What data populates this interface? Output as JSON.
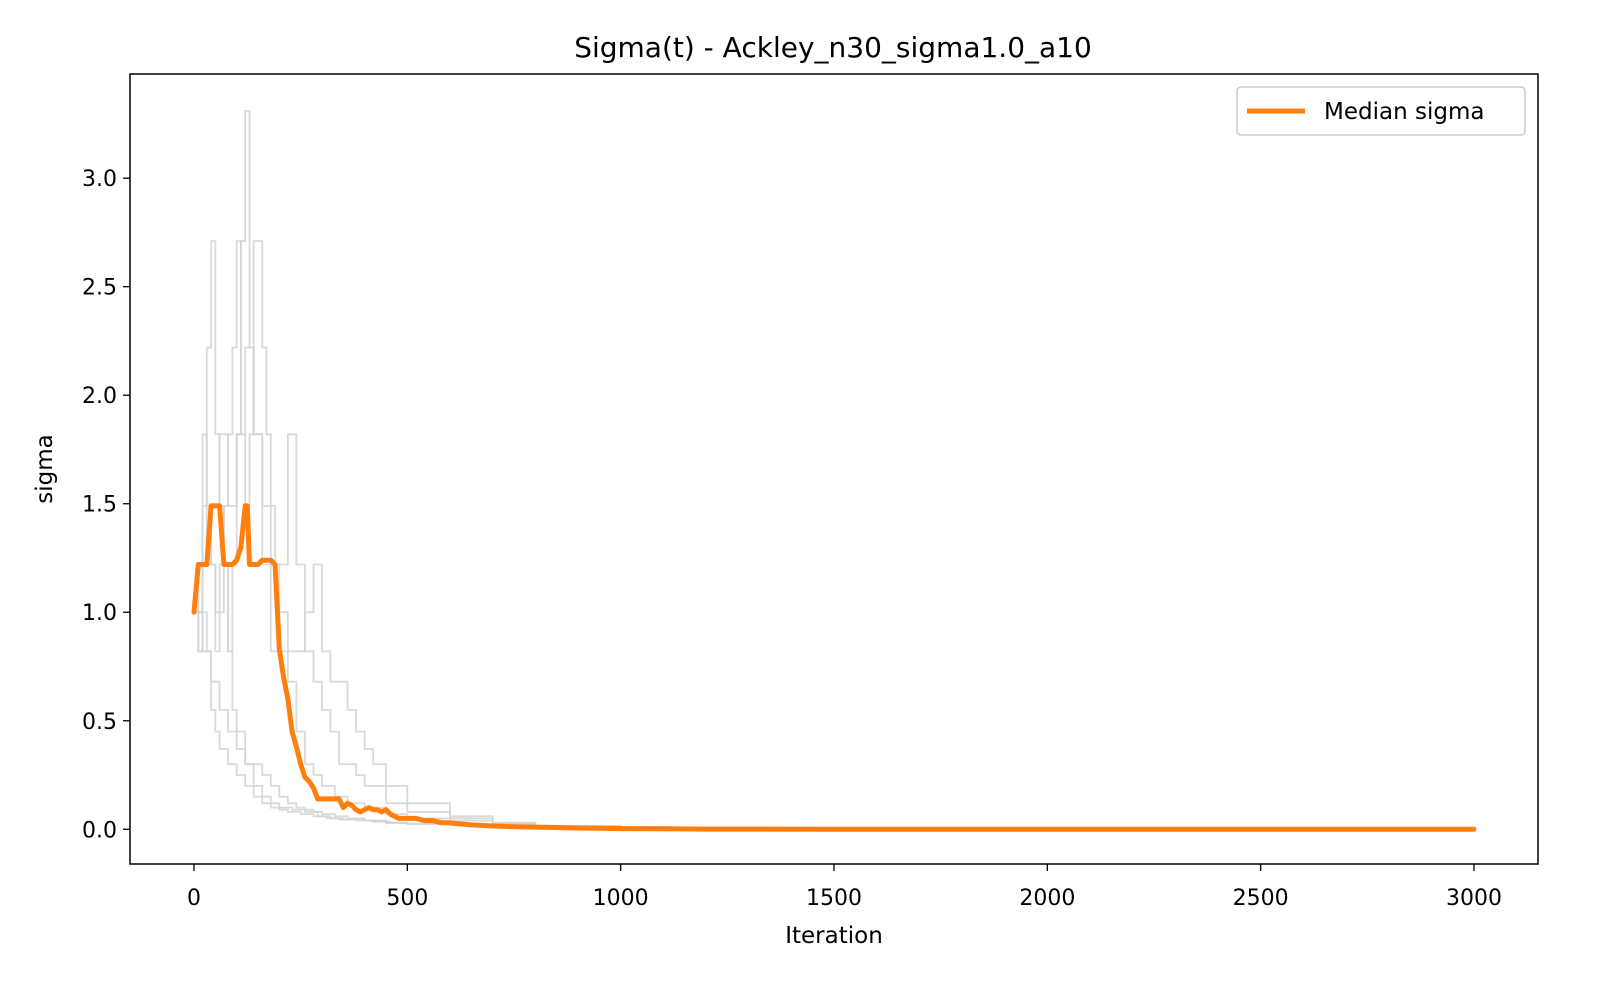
{
  "chart_data": {
    "type": "line",
    "title": "Sigma(t) - Ackley_n30_sigma1.0_a10",
    "xlabel": "Iteration",
    "ylabel": "sigma",
    "xlim": [
      -150,
      3150
    ],
    "ylim": [
      -0.16,
      3.48
    ],
    "xticks": [
      0,
      500,
      1000,
      1500,
      2000,
      2500,
      3000
    ],
    "xtick_labels": [
      "0",
      "500",
      "1000",
      "1500",
      "2000",
      "2500",
      "3000"
    ],
    "yticks": [
      0.0,
      0.5,
      1.0,
      1.5,
      2.0,
      2.5,
      3.0
    ],
    "ytick_labels": [
      "0.0",
      "0.5",
      "1.0",
      "1.5",
      "2.0",
      "2.5",
      "3.0"
    ],
    "grid": false,
    "legend": {
      "position": "top-right",
      "entries": [
        "Median sigma"
      ]
    },
    "colors": {
      "median": "#ff7f0e",
      "runs": "#d3d3d3"
    },
    "series": [
      {
        "name": "Median sigma",
        "role": "median",
        "x": [
          0,
          10,
          20,
          30,
          40,
          50,
          60,
          70,
          80,
          90,
          100,
          110,
          120,
          125,
          130,
          140,
          150,
          160,
          170,
          180,
          190,
          200,
          210,
          220,
          230,
          240,
          250,
          260,
          270,
          280,
          290,
          300,
          310,
          320,
          330,
          340,
          350,
          360,
          370,
          380,
          390,
          400,
          410,
          420,
          430,
          440,
          450,
          460,
          470,
          480,
          490,
          500,
          520,
          540,
          560,
          580,
          600,
          620,
          650,
          700,
          750,
          800,
          850,
          900,
          1000,
          1100,
          1200,
          1500,
          2000,
          2500,
          3000
        ],
        "y": [
          1.0,
          1.22,
          1.22,
          1.22,
          1.49,
          1.49,
          1.49,
          1.22,
          1.22,
          1.22,
          1.24,
          1.3,
          1.49,
          1.49,
          1.22,
          1.22,
          1.22,
          1.24,
          1.24,
          1.24,
          1.22,
          0.83,
          0.7,
          0.6,
          0.45,
          0.38,
          0.3,
          0.24,
          0.22,
          0.19,
          0.14,
          0.14,
          0.14,
          0.14,
          0.14,
          0.14,
          0.1,
          0.12,
          0.11,
          0.09,
          0.08,
          0.09,
          0.1,
          0.09,
          0.09,
          0.08,
          0.09,
          0.07,
          0.06,
          0.05,
          0.05,
          0.05,
          0.05,
          0.04,
          0.04,
          0.03,
          0.03,
          0.025,
          0.02,
          0.015,
          0.012,
          0.01,
          0.008,
          0.006,
          0.003,
          0.002,
          0.001,
          0.0005,
          0.0002,
          0.0001,
          0.0001
        ]
      },
      {
        "role": "run",
        "x": [
          0,
          10,
          20,
          30,
          40,
          50,
          60,
          70,
          80,
          90,
          100,
          110,
          120,
          130,
          140,
          160,
          180,
          200,
          220,
          240,
          260,
          280,
          300,
          330,
          360,
          400,
          450,
          500,
          600,
          700,
          800,
          1000
        ],
        "y": [
          1.0,
          1.22,
          1.82,
          1.49,
          1.22,
          0.82,
          1.0,
          1.22,
          0.82,
          1.22,
          1.82,
          2.71,
          3.31,
          2.22,
          1.82,
          1.22,
          0.82,
          0.82,
          0.68,
          0.45,
          0.3,
          0.25,
          0.2,
          0.15,
          0.12,
          0.1,
          0.07,
          0.05,
          0.04,
          0.025,
          0.012,
          0.004
        ]
      },
      {
        "role": "run",
        "x": [
          0,
          10,
          20,
          30,
          40,
          50,
          60,
          70,
          80,
          90,
          100,
          120,
          140,
          160,
          180,
          200,
          230,
          260,
          290,
          320,
          350,
          400,
          450,
          500,
          600,
          700,
          800,
          1000
        ],
        "y": [
          1.0,
          1.22,
          1.49,
          2.22,
          2.71,
          1.82,
          1.49,
          1.22,
          0.82,
          0.55,
          0.45,
          0.3,
          0.2,
          0.15,
          0.12,
          0.1,
          0.09,
          0.08,
          0.06,
          0.05,
          0.045,
          0.04,
          0.03,
          0.025,
          0.02,
          0.015,
          0.01,
          0.004
        ]
      },
      {
        "role": "run",
        "x": [
          0,
          10,
          20,
          30,
          40,
          50,
          60,
          70,
          80,
          90,
          100,
          110,
          120,
          130,
          140,
          150,
          160,
          170,
          180,
          190,
          200,
          220,
          240,
          260,
          280,
          300,
          320,
          340,
          360,
          380,
          400,
          450,
          500,
          600,
          700,
          800,
          1000
        ],
        "y": [
          1.0,
          0.82,
          1.22,
          1.49,
          1.22,
          1.0,
          1.22,
          1.49,
          1.82,
          2.22,
          2.71,
          1.82,
          1.49,
          1.82,
          2.71,
          2.71,
          2.22,
          1.82,
          1.49,
          1.22,
          1.22,
          1.82,
          1.22,
          0.82,
          0.68,
          0.55,
          0.45,
          0.3,
          0.3,
          0.25,
          0.2,
          0.12,
          0.08,
          0.05,
          0.03,
          0.015,
          0.005
        ]
      },
      {
        "role": "run",
        "x": [
          0,
          10,
          20,
          30,
          40,
          50,
          60,
          80,
          100,
          120,
          140,
          160,
          180,
          200,
          220,
          250,
          280,
          310,
          340,
          380,
          420,
          460,
          500,
          600,
          700,
          800,
          1000
        ],
        "y": [
          1.0,
          0.82,
          1.0,
          0.82,
          0.55,
          0.45,
          0.37,
          0.3,
          0.25,
          0.2,
          0.15,
          0.12,
          0.1,
          0.09,
          0.08,
          0.07,
          0.06,
          0.05,
          0.045,
          0.04,
          0.035,
          0.03,
          0.025,
          0.02,
          0.015,
          0.01,
          0.004
        ]
      },
      {
        "role": "run",
        "x": [
          0,
          20,
          40,
          60,
          80,
          100,
          120,
          140,
          160,
          180,
          200,
          220,
          240,
          260,
          280,
          300,
          320,
          340,
          360,
          380,
          400,
          420,
          450,
          500,
          600,
          700,
          800,
          1000
        ],
        "y": [
          1.0,
          1.22,
          1.49,
          1.82,
          1.49,
          1.82,
          2.22,
          1.82,
          1.49,
          1.22,
          1.0,
          0.82,
          0.82,
          1.0,
          1.22,
          0.82,
          0.68,
          0.68,
          0.55,
          0.45,
          0.37,
          0.3,
          0.2,
          0.12,
          0.06,
          0.03,
          0.015,
          0.005
        ]
      },
      {
        "role": "run",
        "x": [
          0,
          20,
          40,
          60,
          80,
          100,
          120,
          140,
          160,
          180,
          200,
          220,
          240,
          260,
          280,
          300,
          330,
          360,
          400,
          450,
          500,
          600,
          700,
          800,
          1000
        ],
        "y": [
          1.0,
          0.82,
          0.68,
          0.55,
          0.45,
          0.37,
          0.3,
          0.3,
          0.25,
          0.2,
          0.15,
          0.12,
          0.1,
          0.09,
          0.08,
          0.07,
          0.06,
          0.05,
          0.04,
          0.03,
          0.025,
          0.02,
          0.015,
          0.01,
          0.004
        ]
      }
    ]
  }
}
